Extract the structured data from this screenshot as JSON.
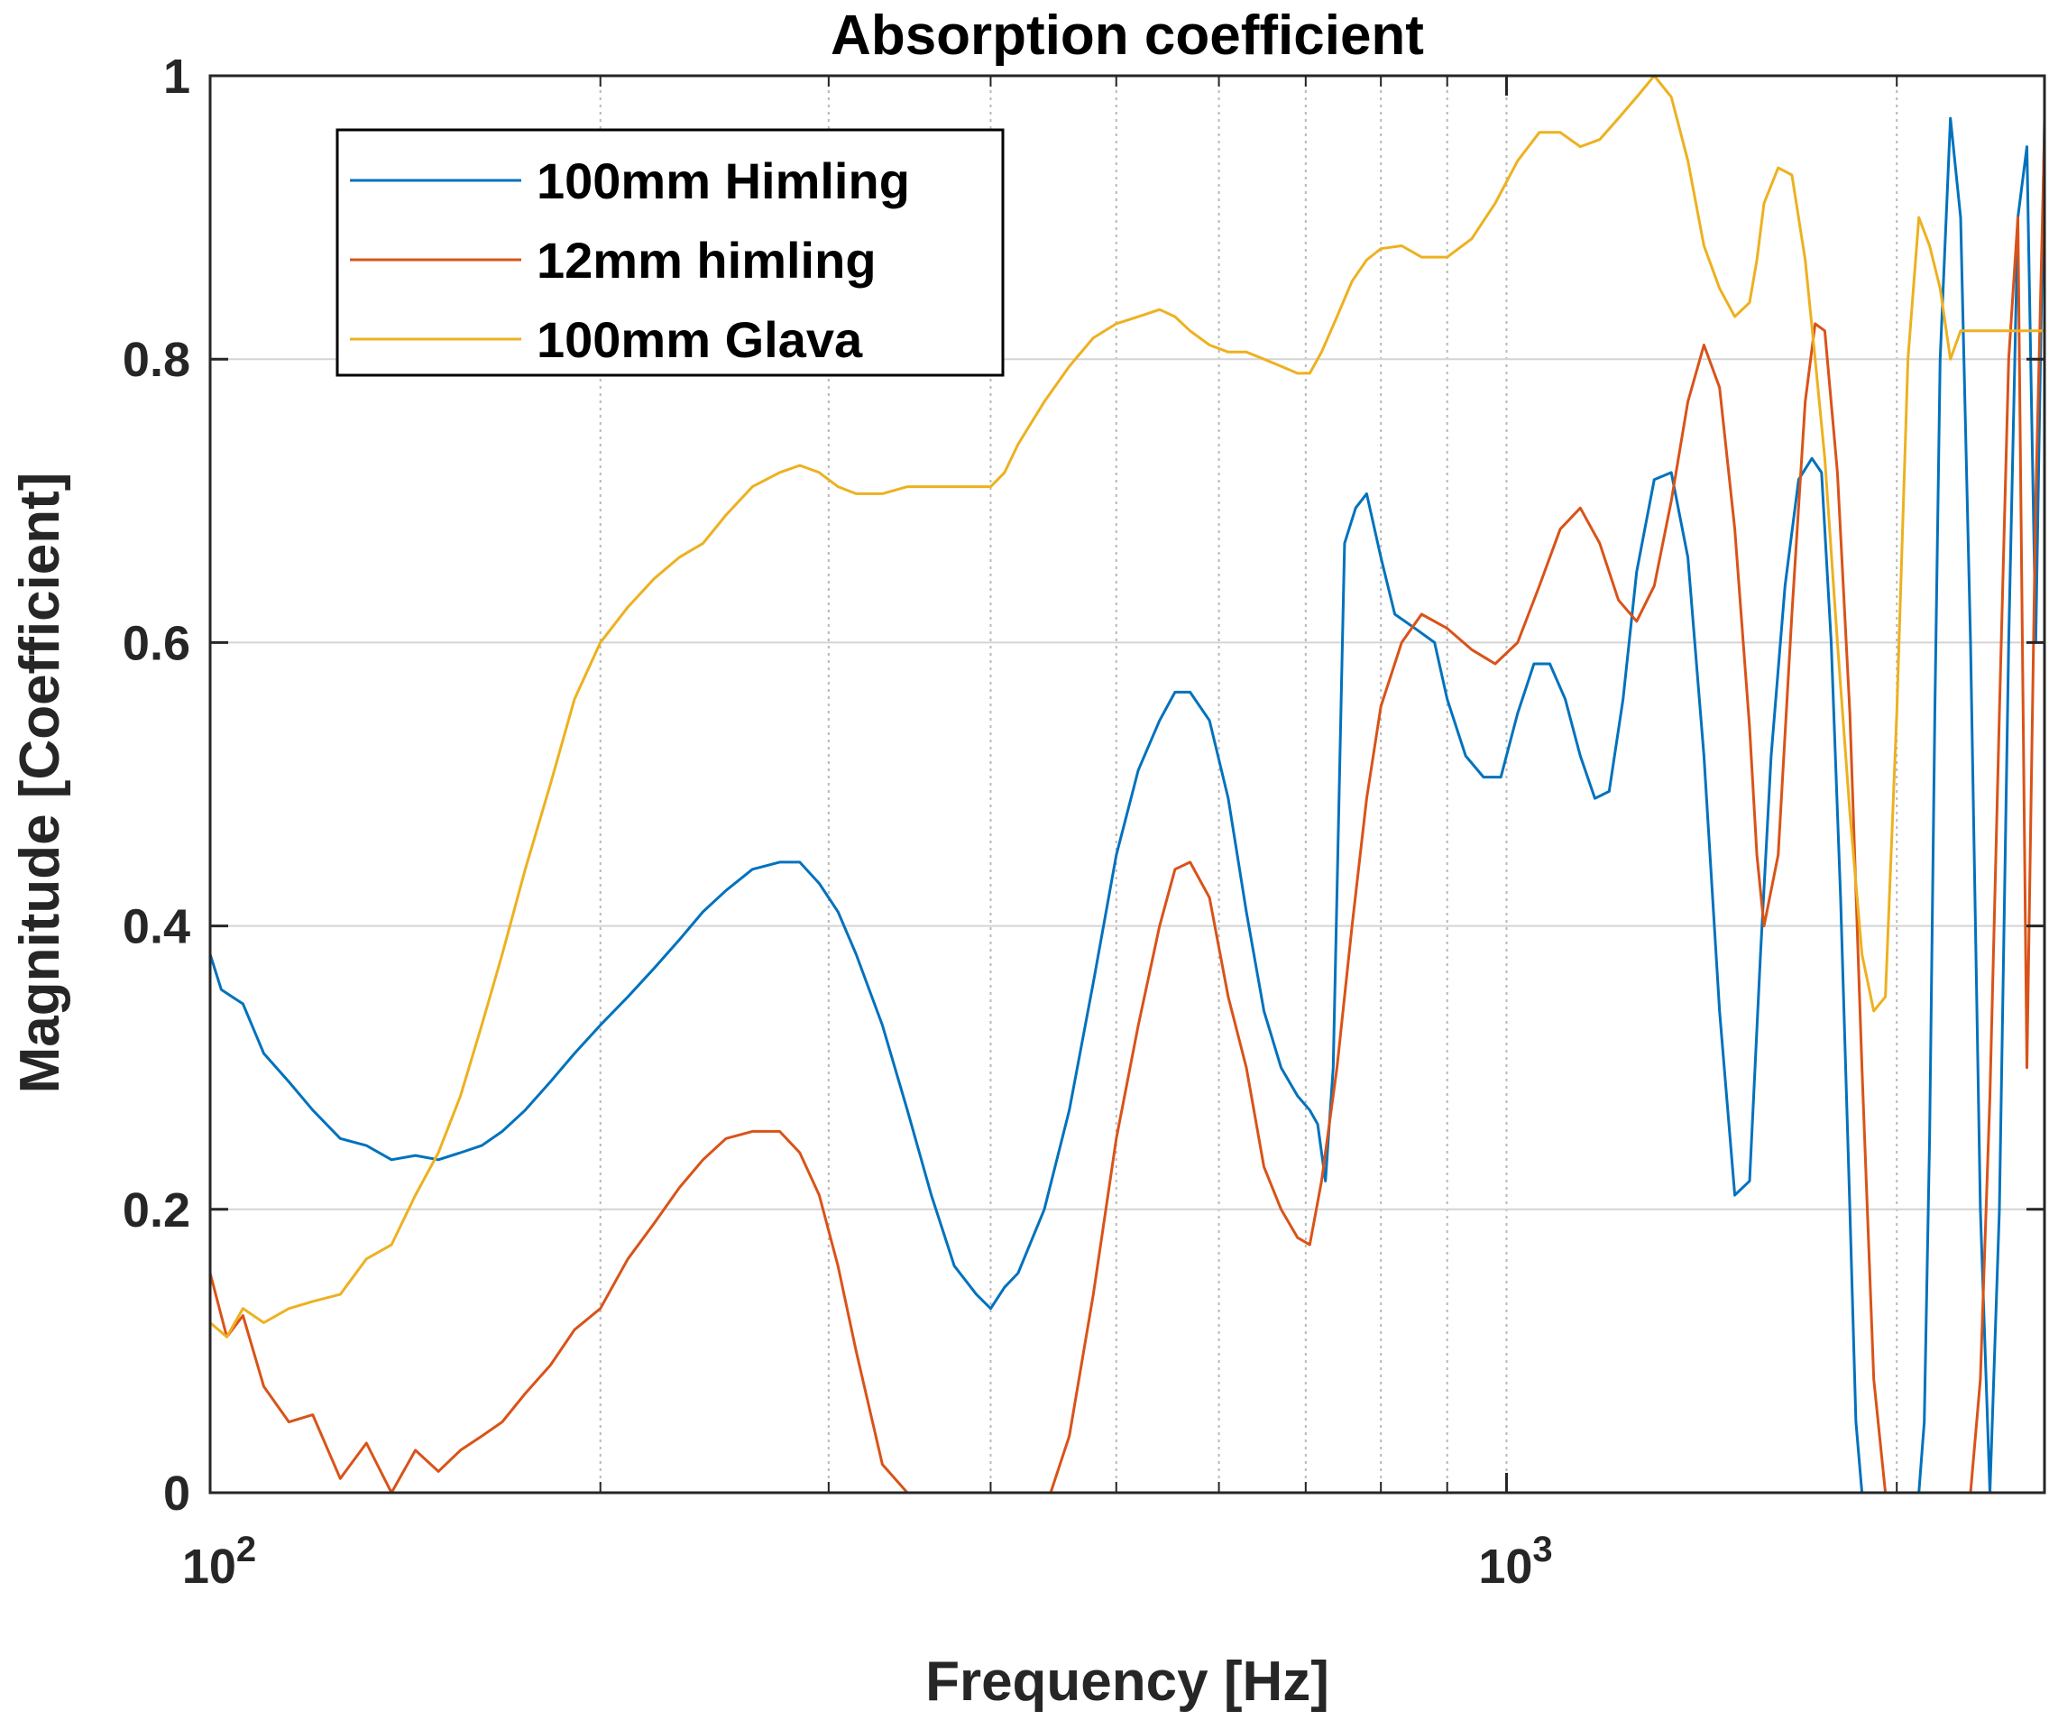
{
  "chart_data": {
    "type": "line",
    "title": "Absorption coefficient",
    "xlabel": "Frequency [Hz]",
    "ylabel": "Magnitude [Coefficient]",
    "xscale": "log",
    "xlim": [
      100,
      2600
    ],
    "ylim": [
      0,
      1
    ],
    "yticks": [
      0,
      0.2,
      0.4,
      0.6,
      0.8,
      1
    ],
    "ytick_labels": [
      "0",
      "0.2",
      "0.4",
      "0.6",
      "0.8",
      "1"
    ],
    "xticks": [
      100,
      1000
    ],
    "xtick_bases": [
      "10",
      "10"
    ],
    "xtick_exponents": [
      "2",
      "3"
    ],
    "grid": true,
    "legend_position": "top-left",
    "series": [
      {
        "name": "100mm Himling",
        "color": "#0072BD",
        "x": [
          100,
          102,
          106,
          110,
          115,
          120,
          126,
          132,
          138,
          144,
          150,
          156,
          162,
          168,
          175,
          183,
          191,
          200,
          210,
          220,
          230,
          240,
          250,
          262,
          275,
          285,
          295,
          305,
          315,
          330,
          345,
          360,
          375,
          390,
          400,
          410,
          420,
          440,
          460,
          480,
          500,
          520,
          540,
          555,
          570,
          590,
          610,
          630,
          650,
          670,
          690,
          705,
          715,
          725,
          735,
          750,
          765,
          780,
          800,
          820,
          850,
          880,
          900,
          930,
          960,
          990,
          1020,
          1050,
          1080,
          1110,
          1140,
          1170,
          1200,
          1230,
          1260,
          1300,
          1340,
          1380,
          1420,
          1460,
          1500,
          1540,
          1570,
          1600,
          1640,
          1680,
          1720,
          1750,
          1780,
          1810,
          1840,
          1860,
          1880,
          1900,
          1920,
          1940,
          1960,
          1980,
          2000,
          2020,
          2040,
          2060,
          2080,
          2100,
          2120,
          2140,
          2160,
          2200,
          2240,
          2280,
          2320,
          2360,
          2400,
          2440,
          2480,
          2520,
          2560,
          2600
        ],
        "y": [
          0.38,
          0.355,
          0.345,
          0.31,
          0.29,
          0.27,
          0.25,
          0.245,
          0.235,
          0.238,
          0.235,
          0.24,
          0.245,
          0.255,
          0.27,
          0.29,
          0.31,
          0.33,
          0.35,
          0.37,
          0.39,
          0.41,
          0.425,
          0.44,
          0.445,
          0.445,
          0.43,
          0.41,
          0.38,
          0.33,
          0.27,
          0.21,
          0.16,
          0.14,
          0.13,
          0.145,
          0.155,
          0.2,
          0.27,
          0.36,
          0.45,
          0.51,
          0.545,
          0.565,
          0.565,
          0.545,
          0.49,
          0.41,
          0.34,
          0.3,
          0.28,
          0.27,
          0.26,
          0.22,
          0.3,
          0.67,
          0.695,
          0.705,
          0.66,
          0.62,
          0.61,
          0.6,
          0.56,
          0.52,
          0.505,
          0.505,
          0.55,
          0.585,
          0.585,
          0.56,
          0.52,
          0.49,
          0.495,
          0.56,
          0.65,
          0.715,
          0.72,
          0.66,
          0.52,
          0.34,
          0.21,
          0.22,
          0.38,
          0.52,
          0.64,
          0.715,
          0.73,
          0.72,
          0.6,
          0.42,
          0.2,
          0.05,
          0.0,
          0.0,
          0.0,
          0.0,
          0.0,
          0.0,
          0.0,
          0.0,
          0.0,
          0.0,
          0.0,
          0.05,
          0.25,
          0.55,
          0.8,
          0.97,
          0.9,
          0.6,
          0.2,
          0.0,
          0.2,
          0.6,
          0.9,
          0.95,
          0.6,
          0.97
        ]
      },
      {
        "name": "12mm himling",
        "color": "#D95319",
        "x": [
          100,
          103,
          106,
          110,
          115,
          120,
          126,
          132,
          138,
          144,
          150,
          156,
          162,
          168,
          175,
          183,
          191,
          200,
          210,
          220,
          230,
          240,
          250,
          262,
          275,
          285,
          295,
          305,
          315,
          330,
          345,
          355,
          365,
          375,
          385,
          395,
          405,
          415,
          425,
          435,
          445,
          460,
          480,
          500,
          520,
          540,
          555,
          570,
          590,
          610,
          630,
          650,
          670,
          690,
          705,
          720,
          740,
          760,
          780,
          800,
          830,
          860,
          900,
          940,
          980,
          1020,
          1060,
          1100,
          1140,
          1180,
          1220,
          1260,
          1300,
          1340,
          1380,
          1420,
          1460,
          1500,
          1540,
          1560,
          1580,
          1620,
          1660,
          1700,
          1730,
          1760,
          1800,
          1840,
          1880,
          1920,
          1960,
          2000,
          2040,
          2080,
          2120,
          2160,
          2200,
          2240,
          2280,
          2320,
          2360,
          2400,
          2440,
          2480,
          2520,
          2560,
          2600
        ],
        "y": [
          0.155,
          0.11,
          0.125,
          0.075,
          0.05,
          0.055,
          0.01,
          0.035,
          0.0,
          0.03,
          0.015,
          0.03,
          0.04,
          0.05,
          0.07,
          0.09,
          0.115,
          0.13,
          0.165,
          0.19,
          0.215,
          0.235,
          0.25,
          0.255,
          0.255,
          0.24,
          0.21,
          0.16,
          0.1,
          0.02,
          0.0,
          0.0,
          0.0,
          0.0,
          0.0,
          0.0,
          0.0,
          0.0,
          0.0,
          0.0,
          0.0,
          0.04,
          0.14,
          0.25,
          0.33,
          0.4,
          0.44,
          0.445,
          0.42,
          0.35,
          0.3,
          0.23,
          0.2,
          0.18,
          0.175,
          0.22,
          0.3,
          0.4,
          0.49,
          0.555,
          0.6,
          0.62,
          0.61,
          0.595,
          0.585,
          0.6,
          0.64,
          0.68,
          0.695,
          0.67,
          0.63,
          0.615,
          0.64,
          0.7,
          0.77,
          0.81,
          0.78,
          0.68,
          0.54,
          0.45,
          0.4,
          0.45,
          0.62,
          0.77,
          0.825,
          0.82,
          0.72,
          0.55,
          0.3,
          0.08,
          0.0,
          0.0,
          0.0,
          0.0,
          0.0,
          0.0,
          0.0,
          0.0,
          0.0,
          0.08,
          0.28,
          0.55,
          0.8,
          0.9,
          0.3,
          0.7,
          0.96
        ]
      },
      {
        "name": "100mm Glava",
        "color": "#EDB120",
        "x": [
          100,
          103,
          106,
          110,
          115,
          120,
          126,
          132,
          138,
          144,
          150,
          156,
          162,
          168,
          175,
          183,
          191,
          200,
          210,
          220,
          230,
          240,
          250,
          262,
          275,
          285,
          295,
          305,
          315,
          330,
          345,
          360,
          375,
          390,
          400,
          410,
          420,
          440,
          460,
          480,
          500,
          520,
          540,
          555,
          570,
          590,
          610,
          630,
          650,
          670,
          690,
          705,
          720,
          740,
          760,
          780,
          800,
          830,
          860,
          900,
          940,
          980,
          1020,
          1060,
          1100,
          1140,
          1180,
          1220,
          1260,
          1300,
          1340,
          1380,
          1420,
          1460,
          1500,
          1540,
          1560,
          1580,
          1620,
          1660,
          1700,
          1730,
          1760,
          1800,
          1840,
          1880,
          1920,
          1960,
          2000,
          2040,
          2080,
          2120,
          2160,
          2200,
          2240,
          2280,
          2320,
          2360,
          2400,
          2440,
          2480,
          2520,
          2560,
          2600
        ],
        "y": [
          0.12,
          0.11,
          0.13,
          0.12,
          0.13,
          0.135,
          0.14,
          0.165,
          0.175,
          0.21,
          0.24,
          0.28,
          0.33,
          0.38,
          0.44,
          0.5,
          0.56,
          0.6,
          0.625,
          0.645,
          0.66,
          0.67,
          0.69,
          0.71,
          0.72,
          0.725,
          0.72,
          0.71,
          0.705,
          0.705,
          0.71,
          0.71,
          0.71,
          0.71,
          0.71,
          0.72,
          0.74,
          0.77,
          0.795,
          0.815,
          0.825,
          0.83,
          0.835,
          0.83,
          0.82,
          0.81,
          0.805,
          0.805,
          0.8,
          0.795,
          0.79,
          0.79,
          0.805,
          0.83,
          0.855,
          0.87,
          0.878,
          0.88,
          0.872,
          0.872,
          0.885,
          0.91,
          0.94,
          0.96,
          0.96,
          0.95,
          0.955,
          0.97,
          0.985,
          1.0,
          0.985,
          0.94,
          0.88,
          0.85,
          0.83,
          0.84,
          0.87,
          0.91,
          0.935,
          0.93,
          0.87,
          0.8,
          0.73,
          0.6,
          0.48,
          0.38,
          0.34,
          0.35,
          0.55,
          0.8,
          0.9,
          0.88,
          0.85,
          0.8,
          0.82,
          0.82,
          0.82,
          0.82,
          0.82,
          0.82,
          0.82,
          0.82,
          0.82,
          0.82
        ]
      }
    ]
  }
}
